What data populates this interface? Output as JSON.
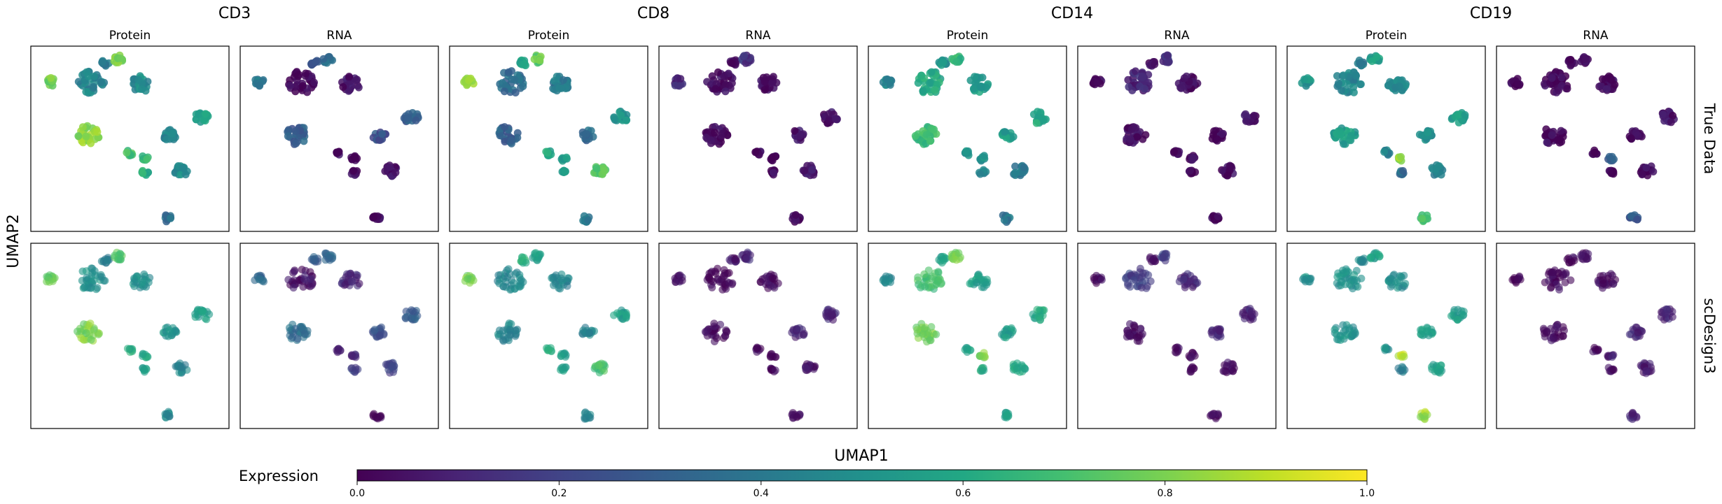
{
  "chart_data": {
    "type": "scatter",
    "title": "",
    "xlabel": "UMAP1",
    "ylabel": "UMAP2",
    "markers": [
      "CD3",
      "CD8",
      "CD14",
      "CD19"
    ],
    "modalities": [
      "Protein",
      "RNA"
    ],
    "rows": [
      "True Data",
      "scDesign3"
    ],
    "colorbar": {
      "label": "Expression",
      "colormap": "viridis",
      "range": [
        0.0,
        1.0
      ],
      "ticks": [
        "0.0",
        "0.2",
        "0.4",
        "0.6",
        "0.8",
        "1.0"
      ]
    },
    "clusters": [
      {
        "id": "a",
        "x": 0.3,
        "y": 0.82
      },
      {
        "id": "b",
        "x": 0.08,
        "y": 0.82
      },
      {
        "id": "c",
        "x": 0.37,
        "y": 0.93
      },
      {
        "id": "d",
        "x": 0.44,
        "y": 0.95
      },
      {
        "id": "e",
        "x": 0.56,
        "y": 0.81
      },
      {
        "id": "f",
        "x": 0.28,
        "y": 0.52
      },
      {
        "id": "g",
        "x": 0.5,
        "y": 0.42
      },
      {
        "id": "h",
        "x": 0.58,
        "y": 0.39
      },
      {
        "id": "i",
        "x": 0.58,
        "y": 0.31
      },
      {
        "id": "j",
        "x": 0.71,
        "y": 0.52
      },
      {
        "id": "k",
        "x": 0.77,
        "y": 0.32
      },
      {
        "id": "l",
        "x": 0.88,
        "y": 0.62
      },
      {
        "id": "m",
        "x": 0.7,
        "y": 0.05
      }
    ],
    "panels": [
      {
        "row": 0,
        "col": 0,
        "marker": "CD3",
        "modality": "Protein",
        "expression": {
          "a": 0.45,
          "b": 0.78,
          "c": 0.38,
          "d": 0.78,
          "e": 0.48,
          "f": 0.82,
          "g": 0.7,
          "h": 0.65,
          "i": 0.62,
          "j": 0.45,
          "k": 0.48,
          "l": 0.55,
          "m": 0.35
        }
      },
      {
        "row": 0,
        "col": 1,
        "marker": "CD3",
        "modality": "RNA",
        "expression": {
          "a": 0.02,
          "b": 0.4,
          "c": 0.25,
          "d": 0.35,
          "e": 0.05,
          "f": 0.3,
          "g": 0.02,
          "h": 0.02,
          "i": 0.02,
          "j": 0.25,
          "k": 0.05,
          "l": 0.3,
          "m": 0.02
        }
      },
      {
        "row": 0,
        "col": 2,
        "marker": "CD8",
        "modality": "Protein",
        "expression": {
          "a": 0.35,
          "b": 0.85,
          "c": 0.6,
          "d": 0.75,
          "e": 0.4,
          "f": 0.3,
          "g": 0.6,
          "h": 0.55,
          "i": 0.55,
          "j": 0.35,
          "k": 0.75,
          "l": 0.5,
          "m": 0.4
        }
      },
      {
        "row": 0,
        "col": 3,
        "marker": "CD8",
        "modality": "RNA",
        "expression": {
          "a": 0.02,
          "b": 0.1,
          "c": 0.05,
          "d": 0.15,
          "e": 0.02,
          "f": 0.02,
          "g": 0.02,
          "h": 0.02,
          "i": 0.02,
          "j": 0.05,
          "k": 0.05,
          "l": 0.05,
          "m": 0.02
        }
      },
      {
        "row": 0,
        "col": 4,
        "marker": "CD14",
        "modality": "Protein",
        "expression": {
          "a": 0.6,
          "b": 0.45,
          "c": 0.5,
          "d": 0.65,
          "e": 0.55,
          "f": 0.68,
          "g": 0.5,
          "h": 0.5,
          "i": 0.45,
          "j": 0.55,
          "k": 0.4,
          "l": 0.6,
          "m": 0.4
        }
      },
      {
        "row": 0,
        "col": 5,
        "marker": "CD14",
        "modality": "RNA",
        "expression": {
          "a": 0.1,
          "b": 0.02,
          "c": 0.02,
          "d": 0.15,
          "e": 0.02,
          "f": 0.02,
          "g": 0.02,
          "h": 0.02,
          "i": 0.02,
          "j": 0.02,
          "k": 0.02,
          "l": 0.05,
          "m": 0.02
        }
      },
      {
        "row": 0,
        "col": 6,
        "marker": "CD19",
        "modality": "Protein",
        "expression": {
          "a": 0.45,
          "b": 0.5,
          "c": 0.4,
          "d": 0.55,
          "e": 0.45,
          "f": 0.55,
          "g": 0.45,
          "h": 0.85,
          "i": 0.35,
          "j": 0.5,
          "k": 0.45,
          "l": 0.55,
          "m": 0.7
        }
      },
      {
        "row": 0,
        "col": 7,
        "marker": "CD19",
        "modality": "RNA",
        "expression": {
          "a": 0.02,
          "b": 0.02,
          "c": 0.02,
          "d": 0.02,
          "e": 0.02,
          "f": 0.02,
          "g": 0.02,
          "h": 0.3,
          "i": 0.02,
          "j": 0.02,
          "k": 0.02,
          "l": 0.05,
          "m": 0.3
        }
      },
      {
        "row": 1,
        "col": 0,
        "marker": "CD3",
        "modality": "Protein",
        "expression": {
          "a": 0.5,
          "b": 0.75,
          "c": 0.4,
          "d": 0.72,
          "e": 0.5,
          "f": 0.8,
          "g": 0.6,
          "h": 0.62,
          "i": 0.55,
          "j": 0.5,
          "k": 0.45,
          "l": 0.55,
          "m": 0.45
        }
      },
      {
        "row": 1,
        "col": 1,
        "marker": "CD3",
        "modality": "RNA",
        "expression": {
          "a": 0.05,
          "b": 0.35,
          "c": 0.3,
          "d": 0.35,
          "e": 0.1,
          "f": 0.35,
          "g": 0.1,
          "h": 0.1,
          "i": 0.2,
          "j": 0.25,
          "k": 0.2,
          "l": 0.3,
          "m": 0.02
        }
      },
      {
        "row": 1,
        "col": 2,
        "marker": "CD8",
        "modality": "Protein",
        "expression": {
          "a": 0.45,
          "b": 0.8,
          "c": 0.65,
          "d": 0.55,
          "e": 0.45,
          "f": 0.45,
          "g": 0.6,
          "h": 0.55,
          "i": 0.55,
          "j": 0.45,
          "k": 0.7,
          "l": 0.55,
          "m": 0.45
        }
      },
      {
        "row": 1,
        "col": 3,
        "marker": "CD8",
        "modality": "RNA",
        "expression": {
          "a": 0.02,
          "b": 0.05,
          "c": 0.05,
          "d": 0.1,
          "e": 0.02,
          "f": 0.02,
          "g": 0.02,
          "h": 0.02,
          "i": 0.02,
          "j": 0.1,
          "k": 0.05,
          "l": 0.1,
          "m": 0.02
        }
      },
      {
        "row": 1,
        "col": 4,
        "marker": "CD14",
        "modality": "Protein",
        "expression": {
          "a": 0.7,
          "b": 0.45,
          "c": 0.55,
          "d": 0.78,
          "e": 0.55,
          "f": 0.78,
          "g": 0.55,
          "h": 0.8,
          "i": 0.6,
          "j": 0.55,
          "k": 0.6,
          "l": 0.6,
          "m": 0.55
        }
      },
      {
        "row": 1,
        "col": 5,
        "marker": "CD14",
        "modality": "RNA",
        "expression": {
          "a": 0.2,
          "b": 0.02,
          "c": 0.02,
          "d": 0.2,
          "e": 0.1,
          "f": 0.02,
          "g": 0.02,
          "h": 0.02,
          "i": 0.02,
          "j": 0.1,
          "k": 0.05,
          "l": 0.1,
          "m": 0.02
        }
      },
      {
        "row": 1,
        "col": 6,
        "marker": "CD19",
        "modality": "Protein",
        "expression": {
          "a": 0.5,
          "b": 0.5,
          "c": 0.45,
          "d": 0.55,
          "e": 0.5,
          "f": 0.5,
          "g": 0.5,
          "h": 0.9,
          "i": 0.4,
          "j": 0.55,
          "k": 0.55,
          "l": 0.55,
          "m": 0.85
        }
      },
      {
        "row": 1,
        "col": 7,
        "marker": "CD19",
        "modality": "RNA",
        "expression": {
          "a": 0.02,
          "b": 0.02,
          "c": 0.02,
          "d": 0.05,
          "e": 0.02,
          "f": 0.02,
          "g": 0.02,
          "h": 0.1,
          "i": 0.02,
          "j": 0.1,
          "k": 0.05,
          "l": 0.1,
          "m": 0.1
        }
      }
    ]
  }
}
